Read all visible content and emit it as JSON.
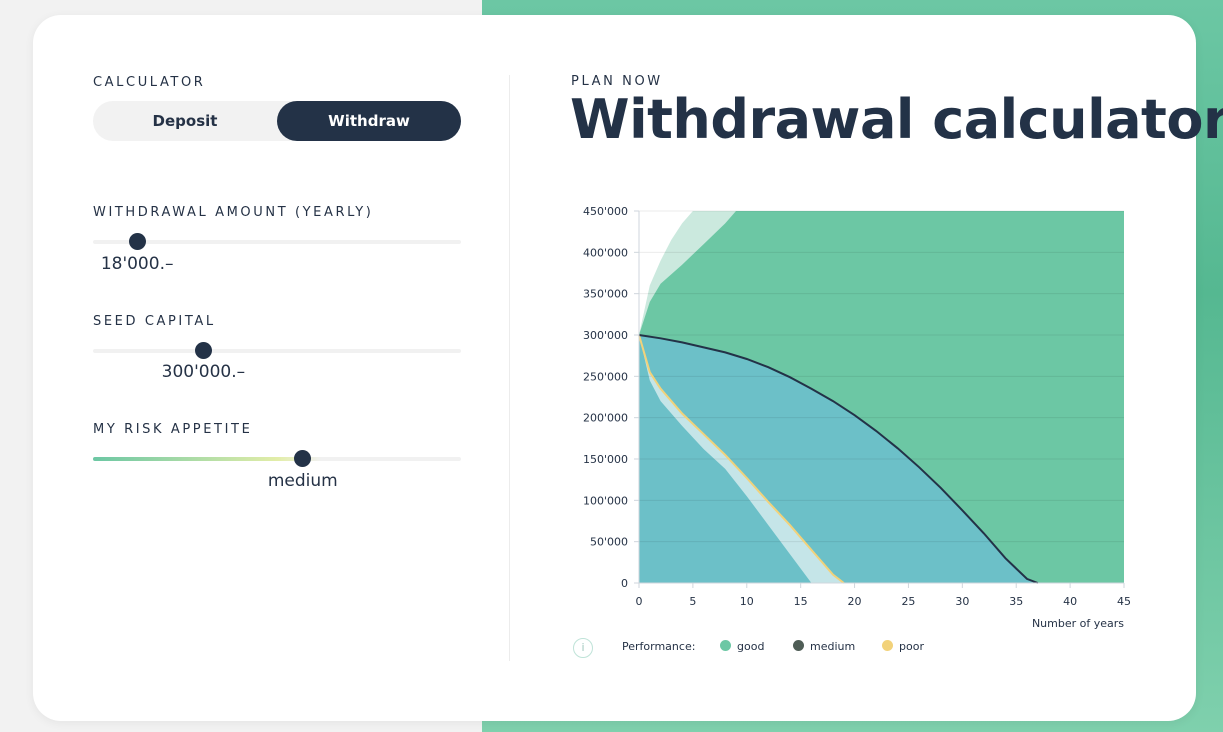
{
  "calculator": {
    "label": "CALCULATOR",
    "toggle": {
      "deposit": "Deposit",
      "withdraw": "Withdraw",
      "selected": "Withdraw"
    }
  },
  "withdrawal": {
    "label": "WITHDRAWAL AMOUNT (YEARLY)",
    "value": "18'000.–",
    "fraction": 0.12
  },
  "seed": {
    "label": "SEED CAPITAL",
    "value": "300'000.–",
    "fraction": 0.3
  },
  "risk": {
    "label": "MY RISK APPETITE",
    "value": "medium",
    "fraction": 0.57
  },
  "header": {
    "kicker": "PLAN NOW",
    "title": "Withdrawal calculator"
  },
  "legend": {
    "info": "i",
    "label": "Performance:",
    "items": [
      {
        "name": "good",
        "color": "#6cc7a4"
      },
      {
        "name": "medium",
        "color": "#4f5d56"
      },
      {
        "name": "poor",
        "color": "#f2d27a"
      }
    ]
  },
  "chart_data": {
    "type": "area",
    "title": "",
    "xlabel": "Number of years",
    "ylabel": "",
    "xlim": [
      0,
      45
    ],
    "ylim": [
      0,
      450000
    ],
    "x_ticks": [
      0,
      5,
      10,
      15,
      20,
      25,
      30,
      35,
      40,
      45
    ],
    "x_tick_labels": [
      "0",
      "5",
      "10",
      "15",
      "20",
      "25",
      "30",
      "35",
      "40",
      "45"
    ],
    "y_ticks": [
      0,
      50000,
      100000,
      150000,
      200000,
      250000,
      300000,
      350000,
      400000,
      450000
    ],
    "y_tick_labels": [
      "0",
      "50'000",
      "100'000",
      "150'000",
      "200'000",
      "250'000",
      "300'000",
      "350'000",
      "400'000",
      "450'000"
    ],
    "series": [
      {
        "name": "good",
        "color": "#6cc7a4",
        "x": [
          0,
          1,
          2,
          4,
          6,
          8,
          9
        ],
        "values": [
          300000,
          340000,
          362000,
          385000,
          410000,
          435000,
          450000
        ]
      },
      {
        "name": "good (band)",
        "color": "#cbe9de",
        "x": [
          0,
          1,
          2,
          3,
          4,
          5
        ],
        "values": [
          300000,
          360000,
          390000,
          415000,
          435000,
          450000
        ]
      },
      {
        "name": "medium",
        "color": "#233247",
        "x": [
          0,
          2,
          4,
          6,
          8,
          10,
          12,
          14,
          16,
          18,
          20,
          22,
          24,
          26,
          28,
          30,
          32,
          34,
          36,
          37
        ],
        "values": [
          300000,
          296000,
          291000,
          285000,
          279000,
          271000,
          261000,
          249000,
          235000,
          220000,
          203000,
          184000,
          163000,
          140000,
          115000,
          88000,
          60000,
          30000,
          5000,
          0
        ]
      },
      {
        "name": "poor",
        "color": "#f2d27a",
        "x": [
          0,
          1,
          2,
          4,
          6,
          8,
          10,
          12,
          14,
          16,
          18,
          19
        ],
        "values": [
          300000,
          255000,
          235000,
          205000,
          180000,
          155000,
          127000,
          98000,
          70000,
          40000,
          10000,
          0
        ]
      },
      {
        "name": "poor (band)",
        "color": "#c5e5e8",
        "x": [
          0,
          1,
          2,
          4,
          6,
          8,
          10,
          12,
          14,
          16
        ],
        "values": [
          300000,
          245000,
          220000,
          190000,
          162000,
          138000,
          105000,
          70000,
          35000,
          0
        ]
      }
    ]
  }
}
